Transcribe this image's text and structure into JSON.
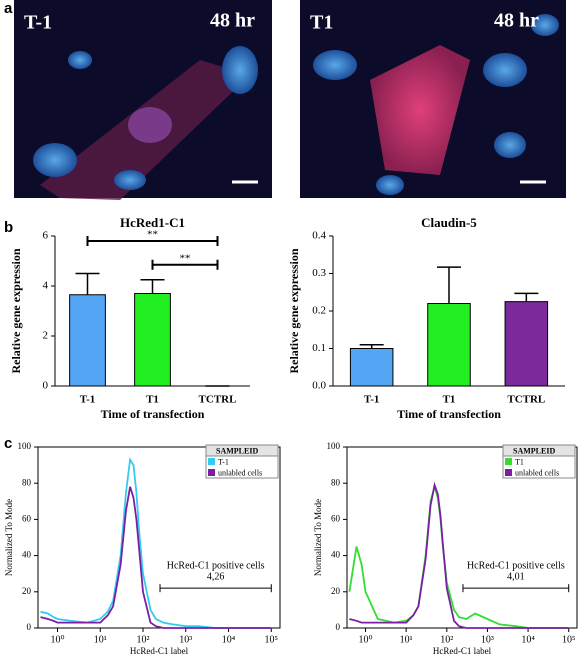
{
  "panel_labels": [
    "a",
    "b",
    "c"
  ],
  "micrographs": [
    {
      "label": "T-1",
      "time": "48 hr"
    },
    {
      "label": "T1",
      "time": "48 hr"
    }
  ],
  "chart_data": [
    {
      "type": "bar",
      "title": "HcRed1-C1",
      "xlabel": "Time of transfection",
      "ylabel": "Relative gene expression",
      "categories": [
        "T-1",
        "T1",
        "TCTRL"
      ],
      "values": [
        3.65,
        3.7,
        0
      ],
      "errors": [
        0.85,
        0.55,
        0
      ],
      "colors": [
        "#55a5f5",
        "#22ee22",
        "#7a2a9a"
      ],
      "ylim": [
        0,
        6
      ],
      "yticks": [
        0,
        2,
        4,
        6
      ],
      "annotations": [
        {
          "text": "**",
          "y": 5.8,
          "span": [
            "T-1",
            "TCTRL"
          ]
        },
        {
          "text": "**",
          "y": 4.85,
          "span": [
            "T1",
            "TCTRL"
          ]
        }
      ]
    },
    {
      "type": "bar",
      "title": "Claudin-5",
      "xlabel": "Time of transfection",
      "ylabel": "Relative gene expression",
      "categories": [
        "T-1",
        "T1",
        "TCTRL"
      ],
      "values": [
        0.1,
        0.22,
        0.225
      ],
      "errors": [
        0.01,
        0.097,
        0.022
      ],
      "colors": [
        "#55a5f5",
        "#22ee22",
        "#7a2a9a"
      ],
      "ylim": [
        0,
        0.4
      ],
      "yticks": [
        {
          "value": 0,
          "label": "0.0"
        },
        0.1,
        0.2,
        0.3,
        0.4
      ],
      "annotations": []
    },
    {
      "type": "line",
      "xlabel": "HcRed-C1 label",
      "ylabel": "Normalized To Mode",
      "log_x": true,
      "xlim": [
        0.35,
        160000
      ],
      "xticks": [
        {
          "value": 1,
          "label": "10⁰"
        },
        {
          "value": 10,
          "label": "10¹"
        },
        {
          "value": 100,
          "label": "10²"
        },
        {
          "value": 1000,
          "label": "10³"
        },
        {
          "value": 10000,
          "label": "10⁴"
        },
        {
          "value": 100000,
          "label": "10⁵"
        }
      ],
      "ylim": [
        0,
        100
      ],
      "yticks": [
        0,
        20,
        40,
        60,
        80,
        100
      ],
      "legend": {
        "title": "SAMPLEID",
        "position": "upper right"
      },
      "x": [
        0.4,
        0.6,
        0.8,
        1,
        2,
        5,
        10,
        15,
        20,
        30,
        40,
        50,
        60,
        70,
        80,
        100,
        150,
        200,
        300,
        500,
        1000,
        2000,
        5000,
        10000,
        100000
      ],
      "series": [
        {
          "name": "T-1",
          "color": "#33ccee",
          "values": [
            9,
            8,
            6,
            5,
            4,
            3,
            5,
            9,
            15,
            40,
            75,
            93,
            90,
            75,
            55,
            30,
            10,
            5,
            3,
            2,
            1,
            1,
            0,
            0,
            0
          ]
        },
        {
          "name": "unlabled cells",
          "color": "#7a1fa2",
          "values": [
            6,
            5,
            4,
            3,
            3,
            3,
            3,
            7,
            12,
            35,
            65,
            78,
            72,
            60,
            45,
            20,
            3,
            1,
            0,
            0,
            0,
            0,
            0,
            0,
            0
          ]
        }
      ],
      "gate": {
        "x": [
          250,
          100000
        ],
        "y": 22,
        "label": "HcRed-C1 positive cells",
        "value_label": "4,26"
      }
    },
    {
      "type": "line",
      "xlabel": "HcRed-C1 label",
      "ylabel": "Normalized To Mode",
      "log_x": true,
      "xlim": [
        0.35,
        160000
      ],
      "xticks": [
        {
          "value": 1,
          "label": "10⁰"
        },
        {
          "value": 10,
          "label": "10¹"
        },
        {
          "value": 100,
          "label": "10²"
        },
        {
          "value": 1000,
          "label": "10³"
        },
        {
          "value": 10000,
          "label": "10⁴"
        },
        {
          "value": 100000,
          "label": "10⁵"
        }
      ],
      "ylim": [
        0,
        100
      ],
      "yticks": [
        0,
        20,
        40,
        60,
        80,
        100
      ],
      "legend": {
        "title": "SAMPLEID",
        "position": "upper right"
      },
      "x": [
        0.4,
        0.6,
        0.8,
        1,
        2,
        5,
        10,
        15,
        20,
        30,
        40,
        50,
        60,
        70,
        80,
        100,
        150,
        200,
        300,
        500,
        1000,
        2000,
        5000,
        10000,
        100000
      ],
      "series": [
        {
          "name": "T1",
          "color": "#33dd33",
          "values": [
            20,
            45,
            35,
            20,
            5,
            3,
            4,
            7,
            12,
            40,
            70,
            78,
            72,
            60,
            45,
            25,
            10,
            6,
            5,
            8,
            5,
            2,
            1,
            0,
            0
          ]
        },
        {
          "name": "unlabled cells",
          "color": "#7a1fa2",
          "values": [
            5,
            4,
            3,
            3,
            3,
            3,
            3,
            7,
            12,
            38,
            68,
            79,
            74,
            62,
            46,
            22,
            4,
            1,
            0,
            0,
            0,
            0,
            0,
            0,
            0
          ]
        }
      ],
      "gate": {
        "x": [
          250,
          100000
        ],
        "y": 22,
        "label": "HcRed-C1 positive cells",
        "value_label": "4,01"
      }
    }
  ]
}
